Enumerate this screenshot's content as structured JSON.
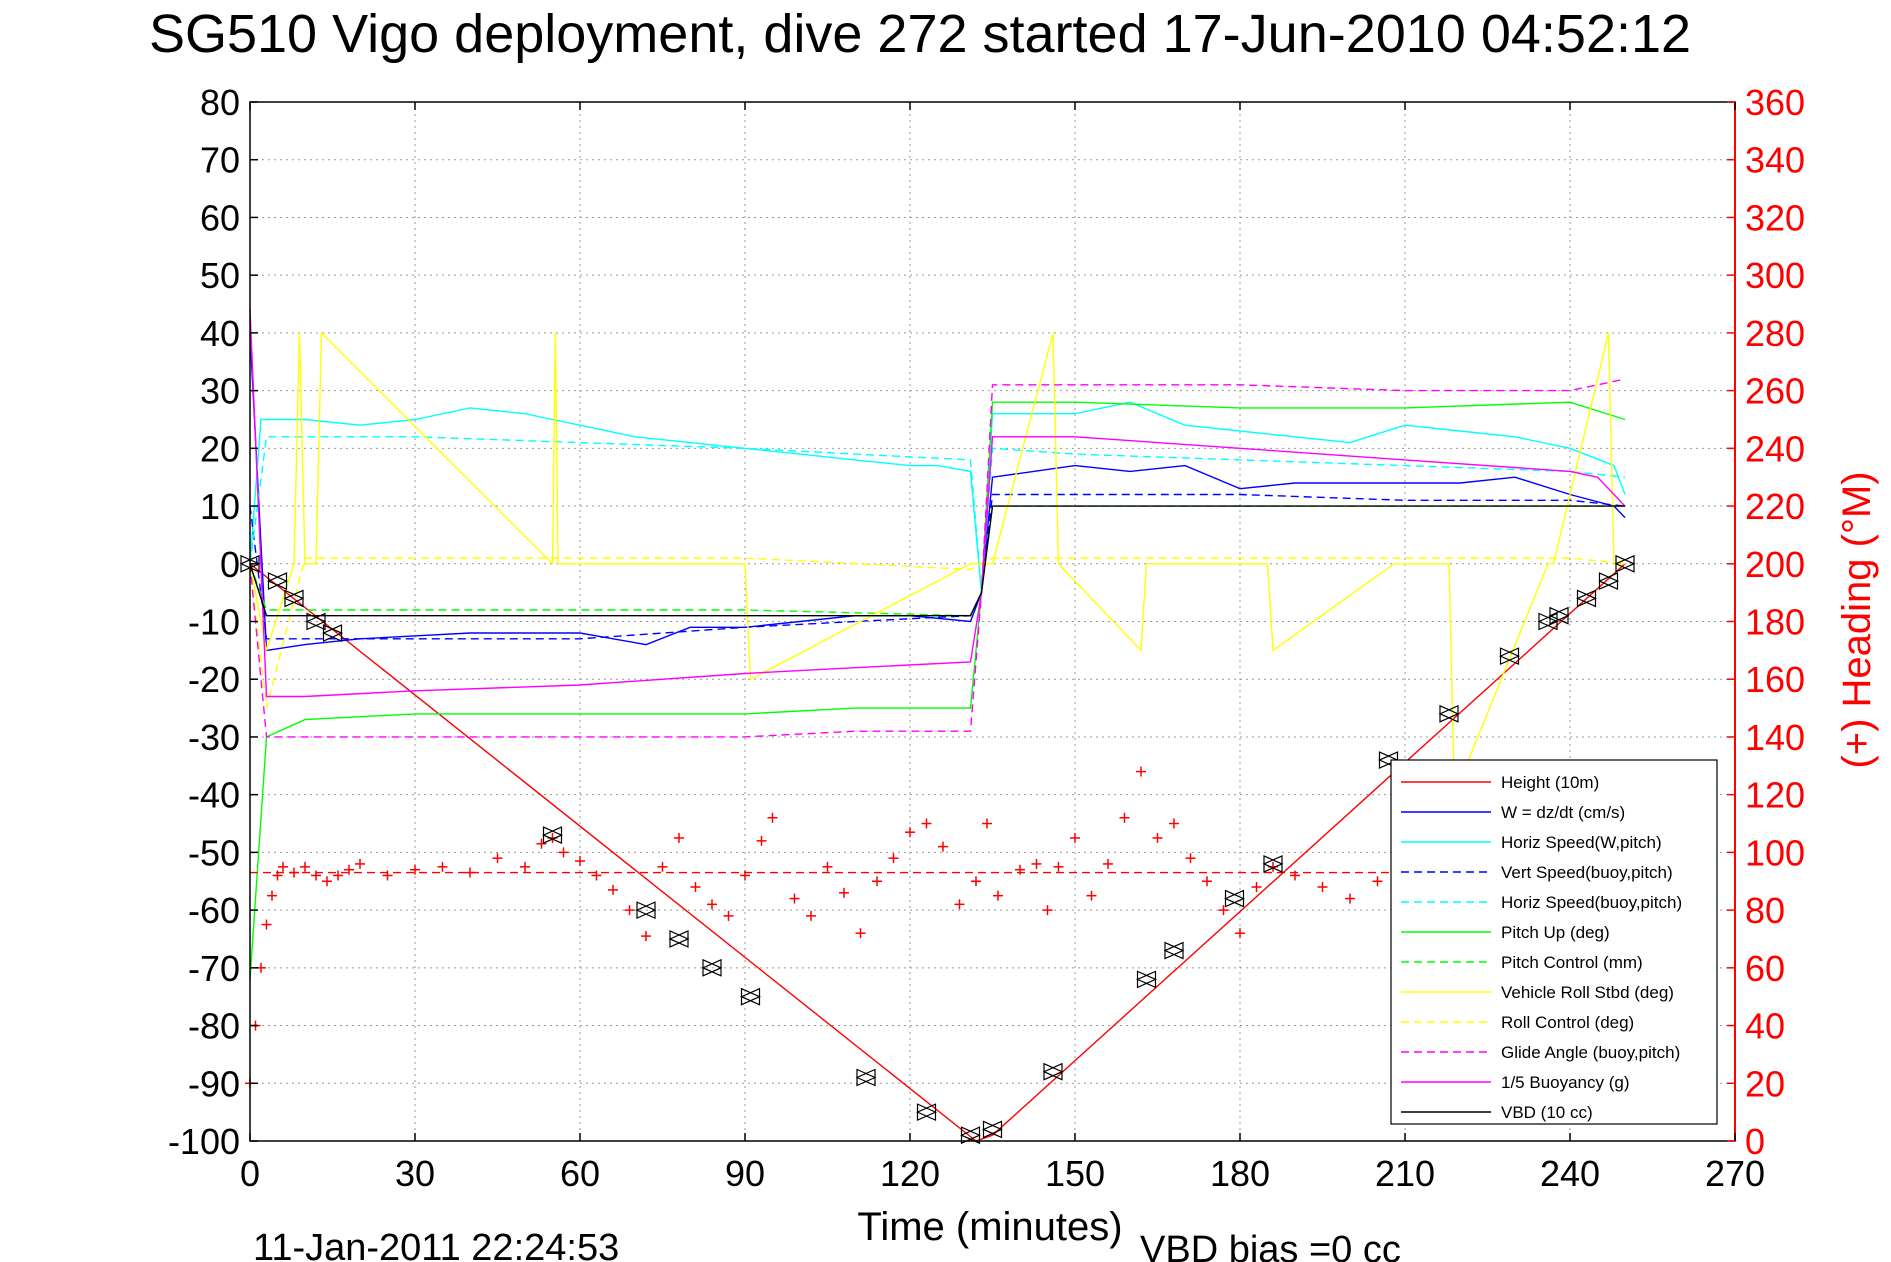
{
  "chart_data": {
    "type": "line",
    "title": "SG510 Vigo deployment, dive 272 started 17-Jun-2010 04:52:12",
    "xlabel": "Time (minutes)",
    "ylabel_right": "(+) Heading (°M)",
    "xlim": [
      0,
      270
    ],
    "ylim_left": [
      -100,
      80
    ],
    "ylim_right": [
      0,
      360
    ],
    "x_ticks": [
      "0",
      "30",
      "60",
      "90",
      "120",
      "150",
      "180",
      "210",
      "240",
      "270"
    ],
    "y_ticks_left": [
      "80",
      "70",
      "60",
      "50",
      "40",
      "30",
      "20",
      "10",
      "0",
      "-10",
      "-20",
      "-30",
      "-40",
      "-50",
      "-60",
      "-70",
      "-80",
      "-90",
      "-100"
    ],
    "y_ticks_right": [
      "360",
      "340",
      "320",
      "300",
      "280",
      "260",
      "240",
      "220",
      "200",
      "180",
      "160",
      "140",
      "120",
      "100",
      "80",
      "60",
      "40",
      "20",
      "0"
    ],
    "grid": true,
    "legend_position": "bottom-right",
    "colors": {
      "red": "#ff0000",
      "blue": "#0000ff",
      "cyan": "#00ffff",
      "green": "#00ff00",
      "yellow": "#ffff00",
      "magenta": "#ff00ff",
      "black": "#000000"
    },
    "series": [
      {
        "name": "Height (10m)",
        "color": "#ff0000",
        "style": "solid",
        "x": [
          0,
          132,
          135,
          250
        ],
        "y": [
          0,
          -100,
          -99,
          0
        ],
        "markers_x": [
          0,
          5,
          8,
          12,
          15,
          55,
          72,
          78,
          84,
          91,
          112,
          123,
          131,
          135,
          146,
          163,
          168,
          179,
          186,
          207,
          218,
          229,
          236,
          238,
          243,
          247,
          250
        ],
        "markers_y": [
          0,
          -3,
          -6,
          -10,
          -12,
          -47,
          -60,
          -65,
          -70,
          -75,
          -89,
          -95,
          -99,
          -98,
          -88,
          -72,
          -67,
          -58,
          -52,
          -34,
          -26,
          -16,
          -10,
          -9,
          -6,
          -3,
          0
        ]
      },
      {
        "name": "W = dz/dt (cm/s)",
        "color": "#0000ff",
        "style": "solid",
        "x": [
          0,
          3,
          10,
          20,
          40,
          60,
          72,
          80,
          90,
          100,
          110,
          120,
          131,
          133,
          135,
          150,
          160,
          170,
          180,
          190,
          200,
          210,
          220,
          230,
          240,
          248,
          250
        ],
        "y": [
          40,
          -15,
          -14,
          -13,
          -12,
          -12,
          -14,
          -11,
          -11,
          -10,
          -9,
          -9,
          -10,
          -5,
          15,
          17,
          16,
          17,
          13,
          14,
          14,
          14,
          14,
          15,
          12,
          10,
          8
        ]
      },
      {
        "name": "Horiz Speed(W,pitch)",
        "color": "#00ffff",
        "style": "solid",
        "x": [
          0,
          2,
          10,
          20,
          30,
          40,
          50,
          55,
          60,
          70,
          80,
          90,
          100,
          110,
          120,
          125,
          131,
          133,
          135,
          150,
          160,
          170,
          180,
          190,
          200,
          210,
          220,
          230,
          240,
          248,
          250
        ],
        "y": [
          0,
          25,
          25,
          24,
          25,
          27,
          26,
          25,
          24,
          22,
          21,
          20,
          19,
          18,
          17,
          17,
          16,
          -5,
          26,
          26,
          28,
          24,
          23,
          22,
          21,
          24,
          23,
          22,
          20,
          17,
          12
        ]
      },
      {
        "name": "Vert Speed(buoy,pitch)",
        "color": "#0000ff",
        "style": "dashed",
        "x": [
          0,
          3,
          10,
          30,
          60,
          90,
          110,
          131,
          133,
          135,
          150,
          180,
          210,
          240,
          250
        ],
        "y": [
          10,
          -13,
          -13,
          -13,
          -13,
          -11,
          -10,
          -9,
          -5,
          12,
          12,
          12,
          11,
          11,
          10
        ]
      },
      {
        "name": "Horiz Speed(buoy,pitch)",
        "color": "#00ffff",
        "style": "dashed",
        "x": [
          0,
          3,
          30,
          60,
          90,
          110,
          131,
          133,
          135,
          150,
          180,
          210,
          240,
          250
        ],
        "y": [
          0,
          22,
          22,
          21,
          20,
          19,
          18,
          -5,
          20,
          19,
          18,
          17,
          16,
          15
        ]
      },
      {
        "name": "Pitch Up (deg)",
        "color": "#00ff00",
        "style": "solid",
        "x": [
          0,
          3,
          10,
          30,
          60,
          90,
          110,
          131,
          133,
          135,
          150,
          180,
          210,
          240,
          250
        ],
        "y": [
          -72,
          -30,
          -27,
          -26,
          -26,
          -26,
          -25,
          -25,
          -5,
          28,
          28,
          27,
          27,
          28,
          25
        ]
      },
      {
        "name": "Pitch Control (mm)",
        "color": "#00ff00",
        "style": "dashed",
        "x": [
          0,
          3,
          30,
          60,
          90,
          131,
          133,
          135,
          180,
          250
        ],
        "y": [
          0,
          -8,
          -8,
          -8,
          -8,
          -9,
          -5,
          10,
          10,
          10
        ]
      },
      {
        "name": "Vehicle Roll Stbd (deg)",
        "color": "#ffff00",
        "style": "solid",
        "x": [
          0,
          3,
          8,
          9,
          10,
          12,
          13,
          55,
          55.5,
          56,
          90,
          91,
          131,
          133,
          135,
          146,
          147,
          162,
          163,
          185,
          186,
          208,
          209,
          218,
          219,
          236,
          237,
          247,
          248,
          250
        ],
        "y": [
          0,
          -15,
          0,
          40,
          0,
          0,
          40,
          0,
          40,
          0,
          0,
          -20,
          0,
          0,
          0,
          40,
          0,
          -15,
          0,
          0,
          -15,
          0,
          0,
          0,
          -40,
          0,
          0,
          40,
          0,
          0
        ]
      },
      {
        "name": "Roll Control (deg)",
        "color": "#ffff00",
        "style": "dashed",
        "x": [
          0,
          3,
          10,
          30,
          60,
          90,
          131,
          133,
          135,
          150,
          180,
          210,
          240,
          250
        ],
        "y": [
          0,
          -25,
          1,
          1,
          1,
          1,
          -1,
          0,
          1,
          1,
          1,
          1,
          1,
          0
        ]
      },
      {
        "name": "Glide Angle (buoy,pitch)",
        "color": "#ff00ff",
        "style": "dashed",
        "x": [
          0,
          3,
          10,
          30,
          60,
          90,
          110,
          131,
          133,
          135,
          150,
          180,
          210,
          240,
          250
        ],
        "y": [
          0,
          -30,
          -30,
          -30,
          -30,
          -30,
          -29,
          -29,
          -5,
          31,
          31,
          31,
          30,
          30,
          32
        ]
      },
      {
        "name": "1/5 Buoyancy (g)",
        "color": "#ff00ff",
        "style": "solid",
        "x": [
          0,
          3,
          10,
          30,
          60,
          90,
          110,
          131,
          133,
          135,
          150,
          180,
          210,
          240,
          245,
          250
        ],
        "y": [
          44,
          -23,
          -23,
          -22,
          -21,
          -19,
          -18,
          -17,
          -5,
          22,
          22,
          20,
          18,
          16,
          15,
          10
        ]
      },
      {
        "name": "VBD (10 cc)",
        "color": "#000000",
        "style": "solid",
        "x": [
          0,
          3,
          30,
          60,
          90,
          131,
          133,
          135,
          180,
          210,
          250
        ],
        "y": [
          0,
          -9,
          -9,
          -9,
          -9,
          -9,
          -5,
          10,
          10,
          10,
          10
        ]
      }
    ],
    "heading_series": {
      "name": "Heading",
      "color": "#ff0000",
      "marker": "+",
      "axis": "right",
      "reference_line": 93,
      "x": [
        0,
        1,
        2,
        3,
        4,
        5,
        6,
        8,
        10,
        12,
        14,
        16,
        18,
        20,
        25,
        30,
        35,
        40,
        45,
        50,
        53,
        55,
        57,
        60,
        63,
        66,
        69,
        72,
        75,
        78,
        81,
        84,
        87,
        90,
        93,
        95,
        99,
        102,
        105,
        108,
        111,
        114,
        117,
        120,
        123,
        126,
        129,
        132,
        134,
        136,
        140,
        143,
        145,
        147,
        150,
        153,
        156,
        159,
        162,
        165,
        168,
        171,
        174,
        177,
        180,
        183,
        186,
        190,
        195,
        200,
        205,
        210
      ],
      "y": [
        20,
        40,
        60,
        75,
        85,
        92,
        95,
        93,
        95,
        92,
        90,
        92,
        94,
        96,
        92,
        94,
        95,
        93,
        98,
        95,
        103,
        105,
        100,
        97,
        92,
        87,
        80,
        71,
        95,
        105,
        88,
        82,
        78,
        92,
        104,
        112,
        84,
        78,
        95,
        86,
        72,
        90,
        98,
        107,
        110,
        102,
        82,
        90,
        110,
        85,
        94,
        96,
        80,
        95,
        105,
        85,
        96,
        112,
        128,
        105,
        110,
        98,
        90,
        80,
        72,
        88,
        95,
        92,
        88,
        84,
        90,
        92
      ]
    }
  },
  "footer": {
    "timestamp": "11-Jan-2011 22:24:53",
    "vbd_bias": "VBD bias =0 cc"
  }
}
